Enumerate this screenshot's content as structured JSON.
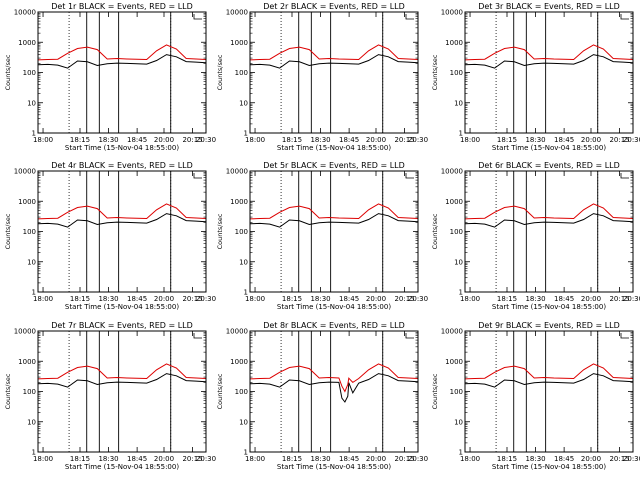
{
  "figure": {
    "colors": {
      "events": "#000000",
      "lld": "#dd0000",
      "axes": "#000000",
      "background": "#ffffff"
    }
  },
  "chart_data": [
    {
      "type": "line",
      "title": "Det 1r BLACK = Events, RED = LLD",
      "xlabel": "Start Time (15-Nov-04 18:55:00)",
      "ylabel": "Counts/sec",
      "yscale": "log",
      "ylim": [
        1,
        10000
      ],
      "x_ticks": [
        "18:00",
        "18:15",
        "18:30",
        "18:45",
        "20:00",
        "20:15",
        "20:30"
      ],
      "y_ticks": [
        "1",
        "10",
        "100",
        "1000",
        "10000"
      ],
      "series": [
        {
          "name": "Events",
          "color": "#000000",
          "values": [
            180,
            185,
            175,
            140,
            240,
            225,
            170,
            195,
            205,
            200,
            195,
            190,
            250,
            390,
            330,
            230,
            220,
            210
          ],
          "dips": []
        },
        {
          "name": "LLD",
          "color": "#dd0000",
          "values": [
            260,
            270,
            275,
            430,
            620,
            690,
            570,
            280,
            290,
            280,
            275,
            270,
            520,
            820,
            600,
            290,
            280,
            270
          ],
          "dips": []
        }
      ]
    },
    {
      "type": "line",
      "title": "Det 2r BLACK = Events, RED = LLD",
      "xlabel": "Start Time (15-Nov-04 18:55:00)",
      "ylabel": "Counts/sec",
      "yscale": "log",
      "ylim": [
        1,
        10000
      ],
      "x_ticks": [
        "18:00",
        "18:15",
        "18:30",
        "18:45",
        "20:00",
        "20:15",
        "20:30"
      ],
      "y_ticks": [
        "1",
        "10",
        "100",
        "1000",
        "10000"
      ],
      "series": [
        {
          "name": "Events",
          "color": "#000000",
          "values": [
            180,
            185,
            175,
            140,
            240,
            225,
            170,
            195,
            205,
            200,
            195,
            190,
            250,
            390,
            330,
            230,
            220,
            210
          ],
          "dips": []
        },
        {
          "name": "LLD",
          "color": "#dd0000",
          "values": [
            260,
            270,
            275,
            430,
            620,
            690,
            570,
            280,
            290,
            280,
            275,
            270,
            520,
            820,
            600,
            290,
            280,
            270
          ],
          "dips": []
        }
      ]
    },
    {
      "type": "line",
      "title": "Det 3r BLACK = Events, RED = LLD",
      "xlabel": "Start Time (15-Nov-04 18:55:00)",
      "ylabel": "Counts/sec",
      "yscale": "log",
      "ylim": [
        1,
        10000
      ],
      "x_ticks": [
        "18:00",
        "18:15",
        "18:30",
        "18:45",
        "20:00",
        "20:15",
        "20:30"
      ],
      "y_ticks": [
        "1",
        "10",
        "100",
        "1000",
        "10000"
      ],
      "series": [
        {
          "name": "Events",
          "color": "#000000",
          "values": [
            180,
            185,
            175,
            140,
            240,
            225,
            170,
            195,
            205,
            200,
            195,
            190,
            250,
            390,
            330,
            230,
            220,
            210
          ],
          "dips": []
        },
        {
          "name": "LLD",
          "color": "#dd0000",
          "values": [
            260,
            270,
            275,
            430,
            620,
            690,
            570,
            280,
            290,
            280,
            275,
            270,
            520,
            820,
            600,
            290,
            280,
            270
          ],
          "dips": []
        }
      ]
    },
    {
      "type": "line",
      "title": "Det 4r BLACK = Events, RED = LLD",
      "xlabel": "Start Time (15-Nov-04 18:55:00)",
      "ylabel": "Counts/sec",
      "yscale": "log",
      "ylim": [
        1,
        10000
      ],
      "x_ticks": [
        "18:00",
        "18:15",
        "18:30",
        "18:45",
        "20:00",
        "20:15",
        "20:30"
      ],
      "y_ticks": [
        "1",
        "10",
        "100",
        "1000",
        "10000"
      ],
      "series": [
        {
          "name": "Events",
          "color": "#000000",
          "values": [
            180,
            185,
            175,
            140,
            240,
            225,
            170,
            195,
            205,
            200,
            195,
            190,
            250,
            390,
            330,
            230,
            220,
            210
          ],
          "dips": []
        },
        {
          "name": "LLD",
          "color": "#dd0000",
          "values": [
            260,
            270,
            275,
            430,
            620,
            690,
            570,
            280,
            290,
            280,
            275,
            270,
            520,
            820,
            600,
            290,
            280,
            270
          ],
          "dips": []
        }
      ]
    },
    {
      "type": "line",
      "title": "Det 5r BLACK = Events, RED = LLD",
      "xlabel": "Start Time (15-Nov-04 18:55:00)",
      "ylabel": "Counts/sec",
      "yscale": "log",
      "ylim": [
        1,
        10000
      ],
      "x_ticks": [
        "18:00",
        "18:15",
        "18:30",
        "18:45",
        "20:00",
        "20:15",
        "20:30"
      ],
      "y_ticks": [
        "1",
        "10",
        "100",
        "1000",
        "10000"
      ],
      "series": [
        {
          "name": "Events",
          "color": "#000000",
          "values": [
            180,
            185,
            175,
            140,
            240,
            225,
            170,
            195,
            205,
            200,
            195,
            190,
            250,
            390,
            330,
            230,
            220,
            210
          ],
          "dips": []
        },
        {
          "name": "LLD",
          "color": "#dd0000",
          "values": [
            260,
            270,
            275,
            430,
            620,
            690,
            570,
            280,
            290,
            280,
            275,
            270,
            520,
            820,
            600,
            290,
            280,
            270
          ],
          "dips": []
        }
      ]
    },
    {
      "type": "line",
      "title": "Det 6r BLACK = Events, RED = LLD",
      "xlabel": "Start Time (15-Nov-04 18:55:00)",
      "ylabel": "Counts/sec",
      "yscale": "log",
      "ylim": [
        1,
        10000
      ],
      "x_ticks": [
        "18:00",
        "18:15",
        "18:30",
        "18:45",
        "20:00",
        "20:15",
        "20:30"
      ],
      "y_ticks": [
        "1",
        "10",
        "100",
        "1000",
        "10000"
      ],
      "series": [
        {
          "name": "Events",
          "color": "#000000",
          "values": [
            180,
            185,
            175,
            140,
            240,
            225,
            170,
            195,
            205,
            200,
            195,
            190,
            250,
            390,
            330,
            230,
            220,
            210
          ],
          "dips": []
        },
        {
          "name": "LLD",
          "color": "#dd0000",
          "values": [
            260,
            270,
            275,
            430,
            620,
            690,
            570,
            280,
            290,
            280,
            275,
            270,
            520,
            820,
            600,
            290,
            280,
            270
          ],
          "dips": []
        }
      ]
    },
    {
      "type": "line",
      "title": "Det 7r BLACK = Events, RED = LLD",
      "xlabel": "Start Time (15-Nov-04 18:55:00)",
      "ylabel": "Counts/sec",
      "yscale": "log",
      "ylim": [
        1,
        10000
      ],
      "x_ticks": [
        "18:00",
        "18:15",
        "18:30",
        "18:45",
        "20:00",
        "20:15",
        "20:30"
      ],
      "y_ticks": [
        "1",
        "10",
        "100",
        "1000",
        "10000"
      ],
      "series": [
        {
          "name": "Events",
          "color": "#000000",
          "values": [
            180,
            185,
            175,
            140,
            240,
            225,
            170,
            195,
            205,
            200,
            195,
            190,
            250,
            390,
            330,
            230,
            220,
            210
          ],
          "dips": []
        },
        {
          "name": "LLD",
          "color": "#dd0000",
          "values": [
            260,
            270,
            275,
            430,
            620,
            690,
            570,
            280,
            290,
            280,
            275,
            270,
            520,
            820,
            600,
            290,
            280,
            270
          ],
          "dips": []
        }
      ]
    },
    {
      "type": "line",
      "title": "Det 8r BLACK = Events, RED = LLD",
      "xlabel": "Start Time (15-Nov-04 18:55:00)",
      "ylabel": "Counts/sec",
      "yscale": "log",
      "ylim": [
        1,
        10000
      ],
      "x_ticks": [
        "18:00",
        "18:15",
        "18:30",
        "18:45",
        "20:00",
        "20:15",
        "20:30"
      ],
      "y_ticks": [
        "1",
        "10",
        "100",
        "1000",
        "10000"
      ],
      "series": [
        {
          "name": "Events",
          "color": "#000000",
          "values": [
            180,
            185,
            175,
            140,
            240,
            225,
            170,
            195,
            205,
            200,
            195,
            190,
            250,
            390,
            330,
            230,
            220,
            210
          ],
          "dips": [
            [
              9.3,
              60
            ],
            [
              9.6,
              45
            ],
            [
              9.9,
              70
            ],
            [
              10.4,
              90
            ]
          ]
        },
        {
          "name": "LLD",
          "color": "#dd0000",
          "values": [
            260,
            270,
            275,
            430,
            620,
            690,
            570,
            280,
            290,
            280,
            275,
            270,
            520,
            820,
            600,
            290,
            280,
            270
          ],
          "dips": [
            [
              9.3,
              150
            ],
            [
              9.6,
              100
            ],
            [
              9.9,
              170
            ],
            [
              10.4,
              200
            ]
          ]
        }
      ]
    },
    {
      "type": "line",
      "title": "Det 9r BLACK = Events, RED = LLD",
      "xlabel": "Start Time (15-Nov-04 18:55:00)",
      "ylabel": "Counts/sec",
      "yscale": "log",
      "ylim": [
        1,
        10000
      ],
      "x_ticks": [
        "18:00",
        "18:15",
        "18:30",
        "18:45",
        "20:00",
        "20:15",
        "20:30"
      ],
      "y_ticks": [
        "1",
        "10",
        "100",
        "1000",
        "10000"
      ],
      "series": [
        {
          "name": "Events",
          "color": "#000000",
          "values": [
            180,
            185,
            175,
            140,
            240,
            225,
            170,
            195,
            205,
            200,
            195,
            190,
            250,
            390,
            330,
            230,
            220,
            210
          ],
          "dips": []
        },
        {
          "name": "LLD",
          "color": "#dd0000",
          "values": [
            260,
            270,
            275,
            430,
            620,
            690,
            570,
            280,
            290,
            280,
            275,
            270,
            520,
            820,
            600,
            290,
            280,
            270
          ],
          "dips": []
        }
      ]
    }
  ]
}
